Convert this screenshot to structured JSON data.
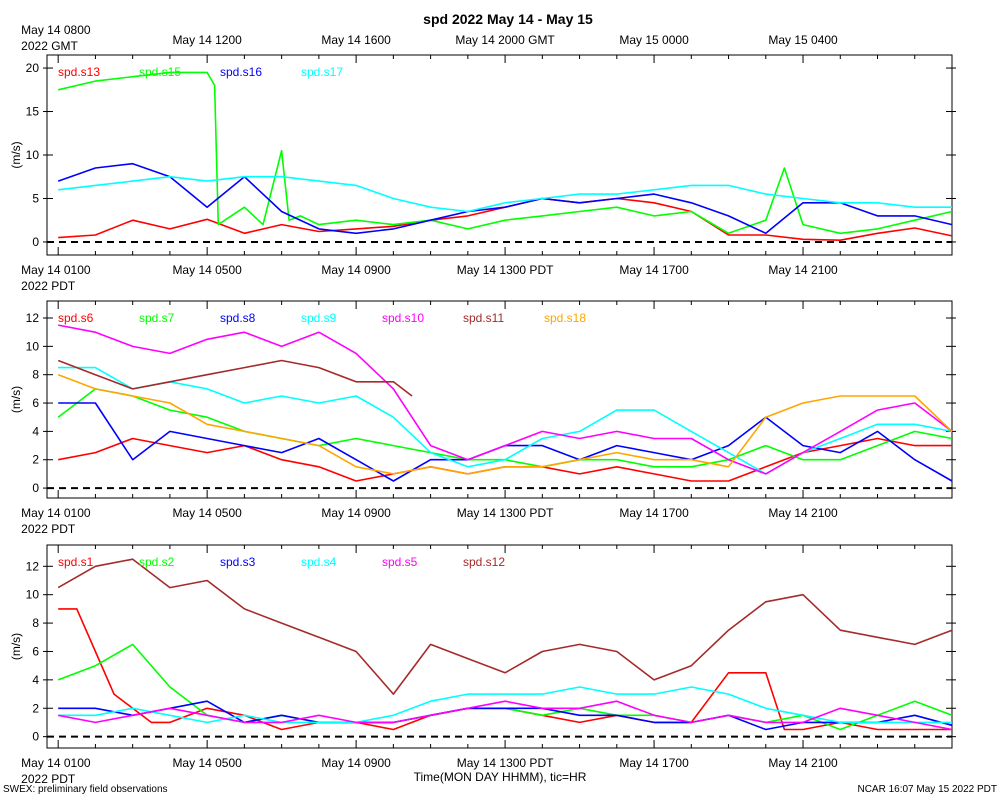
{
  "figure": {
    "title": "spd 2022 May 14 - May 15",
    "footer_left": "SWEX: preliminary field observations",
    "footer_right": "NCAR 16:07 May 15 2022 PDT",
    "xlabel": "Time(MON DAY HHMM), tic=HR",
    "gmt_axis_labels": [
      {
        "hour": 0,
        "lines": [
          "May 14 0800",
          "2022 GMT"
        ]
      },
      {
        "hour": 4,
        "lines": [
          "May 14 1200"
        ]
      },
      {
        "hour": 8,
        "lines": [
          "May 14 1600"
        ]
      },
      {
        "hour": 12,
        "lines": [
          "May 14 2000 GMT"
        ]
      },
      {
        "hour": 16,
        "lines": [
          "May 15 0000"
        ]
      },
      {
        "hour": 20,
        "lines": [
          "May 15 0400"
        ]
      }
    ],
    "pdt_axis_labels": [
      {
        "hour": 0,
        "lines": [
          "May 14 0100",
          "2022 PDT"
        ]
      },
      {
        "hour": 4,
        "lines": [
          "May 14 0500"
        ]
      },
      {
        "hour": 8,
        "lines": [
          "May 14 0900"
        ]
      },
      {
        "hour": 12,
        "lines": [
          "May 14 1300 PDT"
        ]
      },
      {
        "hour": 16,
        "lines": [
          "May 14 1700"
        ]
      },
      {
        "hour": 20,
        "lines": [
          "May 14 2100"
        ]
      }
    ]
  },
  "chart_data": [
    {
      "type": "line",
      "title": "spd 2022 May 14 - May 15",
      "ylabel": "(m/s)",
      "xlabel": "",
      "x_units": "hours since May 14 0100 PDT",
      "xlim": [
        -0.3,
        24.0
      ],
      "ylim": [
        -1.5,
        21.5
      ],
      "yticks": [
        0,
        5,
        10,
        15,
        20
      ],
      "zero_line": true,
      "series": [
        {
          "name": "spd.s13",
          "color": "#ff0000",
          "x": [
            0,
            1,
            2,
            3,
            4,
            5,
            6,
            7,
            8,
            9,
            10,
            11,
            12,
            13,
            14,
            15,
            16,
            17,
            18,
            19,
            20,
            21,
            22,
            23,
            24
          ],
          "values": [
            0.5,
            0.8,
            2.5,
            1.5,
            2.6,
            1.0,
            2.0,
            1.2,
            1.5,
            1.8,
            2.5,
            3.0,
            4.0,
            5.0,
            4.5,
            5.0,
            4.5,
            3.5,
            0.8,
            0.8,
            0.3,
            0.2,
            1.0,
            1.6,
            0.7
          ]
        },
        {
          "name": "spd.s15",
          "color": "#00ff00",
          "x": [
            0,
            1,
            2,
            3,
            4,
            4.2,
            4.3,
            5,
            5.5,
            6,
            6.2,
            6.5,
            7,
            8,
            9,
            10,
            11,
            12,
            13,
            14,
            15,
            16,
            17,
            18,
            19,
            19.5,
            20,
            21,
            22,
            23,
            24
          ],
          "values": [
            17.5,
            18.5,
            19.0,
            19.5,
            19.5,
            18.0,
            2.0,
            4.0,
            2.0,
            10.5,
            2.5,
            3.0,
            2.0,
            2.5,
            2.0,
            2.5,
            1.5,
            2.5,
            3.0,
            3.5,
            4.0,
            3.0,
            3.5,
            1.0,
            2.5,
            8.5,
            2.0,
            1.0,
            1.5,
            2.5,
            3.5
          ]
        },
        {
          "name": "spd.s16",
          "color": "#0000ff",
          "x": [
            0,
            1,
            2,
            3,
            4,
            5,
            6,
            7,
            8,
            9,
            10,
            11,
            12,
            13,
            14,
            15,
            16,
            17,
            18,
            19,
            20,
            21,
            22,
            23,
            24
          ],
          "values": [
            7.0,
            8.5,
            9.0,
            7.5,
            4.0,
            7.5,
            3.5,
            1.5,
            1.0,
            1.5,
            2.5,
            3.5,
            4.0,
            5.0,
            4.5,
            5.0,
            5.5,
            4.5,
            3.0,
            1.0,
            4.5,
            4.5,
            3.0,
            3.0,
            2.0
          ]
        },
        {
          "name": "spd.s17",
          "color": "#00ffff",
          "x": [
            0,
            1,
            2,
            3,
            4,
            5,
            6,
            7,
            8,
            9,
            10,
            11,
            12,
            13,
            14,
            15,
            16,
            17,
            18,
            19,
            20,
            21,
            22,
            23,
            24
          ],
          "values": [
            6.0,
            6.5,
            7.0,
            7.5,
            7.0,
            7.5,
            7.5,
            7.0,
            6.5,
            5.0,
            4.0,
            3.5,
            4.5,
            5.0,
            5.5,
            5.5,
            6.0,
            6.5,
            6.5,
            5.5,
            5.0,
            4.5,
            4.5,
            4.0,
            4.0
          ]
        }
      ]
    },
    {
      "type": "line",
      "title": "",
      "ylabel": "(m/s)",
      "xlabel": "",
      "x_units": "hours since May 14 0100 PDT",
      "xlim": [
        -0.3,
        24.0
      ],
      "ylim": [
        -0.7,
        13.2
      ],
      "yticks": [
        0,
        2,
        4,
        6,
        8,
        10,
        12
      ],
      "zero_line": true,
      "series": [
        {
          "name": "spd.s6",
          "color": "#ff0000",
          "x": [
            0,
            1,
            2,
            3,
            4,
            5,
            6,
            7,
            8,
            9,
            10,
            11,
            12,
            13,
            14,
            15,
            16,
            17,
            18,
            19,
            20,
            21,
            22,
            23,
            24
          ],
          "values": [
            2.0,
            2.5,
            3.5,
            3.0,
            2.5,
            3.0,
            2.0,
            1.5,
            0.5,
            1.0,
            1.5,
            1.0,
            1.5,
            1.5,
            1.0,
            1.5,
            1.0,
            0.5,
            0.5,
            1.5,
            2.5,
            3.0,
            3.5,
            3.0,
            3.0
          ]
        },
        {
          "name": "spd.s7",
          "color": "#00ff00",
          "x": [
            0,
            1,
            2,
            3,
            4,
            5,
            6,
            7,
            8,
            9,
            10,
            11,
            12,
            13,
            14,
            15,
            16,
            17,
            18,
            19,
            20,
            21,
            22,
            23,
            24
          ],
          "values": [
            5.0,
            7.0,
            6.5,
            5.5,
            5.0,
            4.0,
            3.5,
            3.0,
            3.5,
            3.0,
            2.5,
            2.0,
            2.0,
            1.5,
            2.0,
            2.0,
            1.5,
            1.5,
            2.0,
            3.0,
            2.0,
            2.0,
            3.0,
            4.0,
            3.5
          ]
        },
        {
          "name": "spd.s8",
          "color": "#0000ff",
          "x": [
            0,
            1,
            2,
            3,
            4,
            5,
            6,
            7,
            8,
            9,
            10,
            11,
            12,
            13,
            14,
            15,
            16,
            17,
            18,
            19,
            20,
            21,
            22,
            23,
            24
          ],
          "values": [
            6.0,
            6.0,
            2.0,
            4.0,
            3.5,
            3.0,
            2.5,
            3.5,
            2.0,
            0.5,
            2.0,
            2.0,
            3.0,
            3.0,
            2.0,
            3.0,
            2.5,
            2.0,
            3.0,
            5.0,
            3.0,
            2.5,
            4.0,
            2.0,
            0.5
          ]
        },
        {
          "name": "spd.s9",
          "color": "#00ffff",
          "x": [
            0,
            1,
            2,
            3,
            4,
            5,
            6,
            7,
            8,
            9,
            10,
            11,
            12,
            13,
            14,
            15,
            16,
            17,
            18,
            19,
            20,
            21,
            22,
            23,
            24
          ],
          "values": [
            8.5,
            8.5,
            7.0,
            7.5,
            7.0,
            6.0,
            6.5,
            6.0,
            6.5,
            5.0,
            2.5,
            1.5,
            2.0,
            3.5,
            4.0,
            5.5,
            5.5,
            4.0,
            2.5,
            1.0,
            2.5,
            3.5,
            4.5,
            4.5,
            4.0
          ]
        },
        {
          "name": "spd.s10",
          "color": "#ff00ff",
          "x": [
            0,
            1,
            2,
            3,
            4,
            5,
            6,
            7,
            8,
            9,
            10,
            11,
            12,
            13,
            14,
            15,
            16,
            17,
            18,
            19,
            20,
            21,
            22,
            23,
            24
          ],
          "values": [
            11.5,
            11.0,
            10.0,
            9.5,
            10.5,
            11.0,
            10.0,
            11.0,
            9.5,
            7.0,
            3.0,
            2.0,
            3.0,
            4.0,
            3.5,
            4.0,
            3.5,
            3.5,
            2.0,
            1.0,
            2.5,
            4.0,
            5.5,
            6.0,
            4.0
          ]
        },
        {
          "name": "spd.s11",
          "color": "#a52a2a",
          "x": [
            0,
            1,
            2,
            3,
            4,
            5,
            6,
            7,
            8,
            9,
            9.5
          ],
          "values": [
            9.0,
            8.0,
            7.0,
            7.5,
            8.0,
            8.5,
            9.0,
            8.5,
            7.5,
            7.5,
            6.5
          ]
        },
        {
          "name": "spd.s18",
          "color": "#ffa500",
          "x": [
            0,
            1,
            2,
            3,
            4,
            5,
            6,
            7,
            8,
            9,
            10,
            11,
            12,
            13,
            14,
            15,
            16,
            17,
            18,
            19,
            20,
            21,
            22,
            23,
            24
          ],
          "values": [
            8.0,
            7.0,
            6.5,
            6.0,
            4.5,
            4.0,
            3.5,
            3.0,
            1.5,
            1.0,
            1.5,
            1.0,
            1.5,
            1.5,
            2.0,
            2.5,
            2.0,
            2.0,
            1.5,
            5.0,
            6.0,
            6.5,
            6.5,
            6.5,
            4.0
          ]
        }
      ]
    },
    {
      "type": "line",
      "title": "",
      "ylabel": "(m/s)",
      "xlabel": "Time(MON DAY HHMM), tic=HR",
      "x_units": "hours since May 14 0100 PDT",
      "xlim": [
        -0.3,
        24.0
      ],
      "ylim": [
        -0.8,
        13.5
      ],
      "yticks": [
        0,
        2,
        4,
        6,
        8,
        10,
        12
      ],
      "zero_line": true,
      "series": [
        {
          "name": "spd.s1",
          "color": "#ff0000",
          "x": [
            0,
            0.5,
            1,
            1.5,
            2,
            2.5,
            3,
            4,
            5,
            6,
            7,
            8,
            9,
            10,
            11,
            12,
            13,
            14,
            15,
            16,
            17,
            18,
            19,
            19.5,
            20,
            21,
            22,
            23,
            24
          ],
          "values": [
            9.0,
            9.0,
            6.0,
            3.0,
            2.0,
            1.0,
            1.0,
            2.0,
            1.5,
            0.5,
            1.0,
            1.0,
            0.5,
            1.5,
            2.0,
            2.0,
            1.5,
            1.0,
            1.5,
            1.0,
            1.0,
            4.5,
            4.5,
            0.5,
            0.5,
            1.0,
            0.5,
            0.5,
            0.5
          ]
        },
        {
          "name": "spd.s2",
          "color": "#00ff00",
          "x": [
            0,
            1,
            2,
            3,
            4,
            5,
            6,
            7,
            8,
            9,
            10,
            11,
            12,
            13,
            14,
            15,
            16,
            17,
            18,
            19,
            20,
            21,
            22,
            23,
            24
          ],
          "values": [
            4.0,
            5.0,
            6.5,
            3.5,
            1.5,
            1.0,
            1.5,
            1.0,
            1.0,
            1.0,
            1.5,
            2.0,
            2.0,
            1.5,
            2.0,
            1.5,
            1.5,
            1.0,
            1.5,
            1.0,
            1.5,
            0.5,
            1.5,
            2.5,
            1.5
          ]
        },
        {
          "name": "spd.s3",
          "color": "#0000ff",
          "x": [
            0,
            1,
            2,
            3,
            4,
            5,
            6,
            7,
            8,
            9,
            10,
            11,
            12,
            13,
            14,
            15,
            16,
            17,
            18,
            19,
            20,
            21,
            22,
            23,
            24
          ],
          "values": [
            2.0,
            2.0,
            1.5,
            2.0,
            2.5,
            1.0,
            1.5,
            1.0,
            1.0,
            1.0,
            1.5,
            2.0,
            2.0,
            2.0,
            1.5,
            1.5,
            1.0,
            1.0,
            1.5,
            0.5,
            1.0,
            1.0,
            1.0,
            1.5,
            0.8
          ]
        },
        {
          "name": "spd.s4",
          "color": "#00ffff",
          "x": [
            0,
            1,
            2,
            3,
            4,
            5,
            6,
            7,
            8,
            9,
            10,
            11,
            12,
            13,
            14,
            15,
            16,
            17,
            18,
            19,
            20,
            21,
            22,
            23,
            24
          ],
          "values": [
            1.5,
            1.5,
            2.0,
            1.5,
            1.0,
            1.5,
            1.0,
            1.0,
            1.0,
            1.5,
            2.5,
            3.0,
            3.0,
            3.0,
            3.5,
            3.0,
            3.0,
            3.5,
            3.0,
            2.0,
            1.5,
            1.0,
            1.0,
            1.0,
            1.0
          ]
        },
        {
          "name": "spd.s5",
          "color": "#ff00ff",
          "x": [
            0,
            1,
            2,
            3,
            4,
            5,
            6,
            7,
            8,
            9,
            10,
            11,
            12,
            13,
            14,
            15,
            16,
            17,
            18,
            19,
            20,
            21,
            22,
            23,
            24
          ],
          "values": [
            1.5,
            1.0,
            1.5,
            2.0,
            1.5,
            1.0,
            1.0,
            1.5,
            1.0,
            1.0,
            1.5,
            2.0,
            2.5,
            2.0,
            2.0,
            2.5,
            1.5,
            1.0,
            1.5,
            1.0,
            1.0,
            2.0,
            1.5,
            1.0,
            0.5
          ]
        },
        {
          "name": "spd.s12",
          "color": "#a52a2a",
          "x": [
            0,
            1,
            2,
            3,
            4,
            5,
            6,
            7,
            8,
            9,
            10,
            11,
            12,
            13,
            14,
            15,
            16,
            17,
            18,
            19,
            20,
            21,
            22,
            23,
            24
          ],
          "values": [
            10.5,
            12.0,
            12.5,
            10.5,
            11.0,
            9.0,
            8.0,
            7.0,
            6.0,
            3.0,
            6.5,
            5.5,
            4.5,
            6.0,
            6.5,
            6.0,
            4.0,
            5.0,
            7.5,
            9.5,
            10.0,
            7.5,
            7.0,
            6.5,
            7.5
          ]
        }
      ]
    }
  ]
}
